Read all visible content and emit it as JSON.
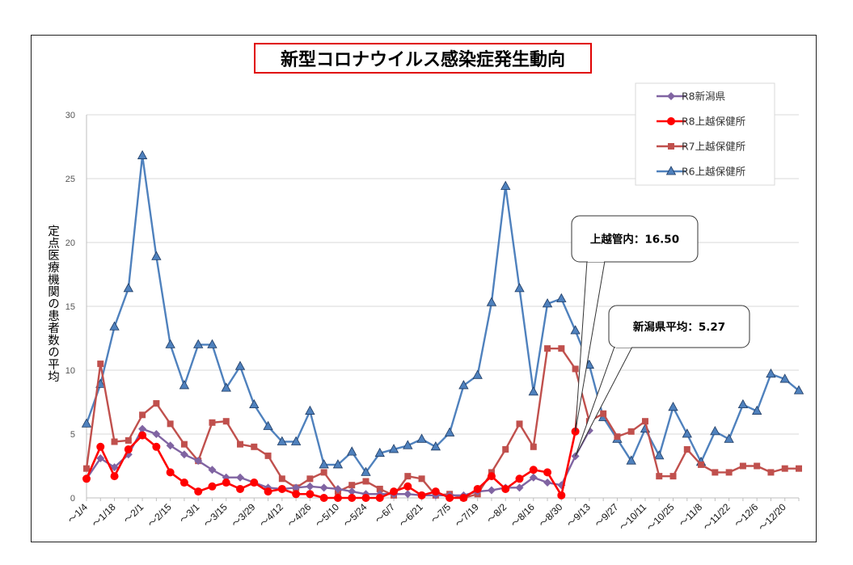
{
  "chart_data": {
    "type": "line",
    "title": "新型コロナウイルス感染症発生動向",
    "ylabel": "定点医療機関の患者数の平均",
    "xlabel": "",
    "ylim": [
      0,
      30
    ],
    "yticks": [
      0,
      5,
      10,
      15,
      20,
      25,
      30
    ],
    "grid": true,
    "legend_position": "top-right",
    "x_tick_labels": [
      "～1/4",
      "～1/18",
      "～2/1",
      "～2/15",
      "～3/1",
      "～3/15",
      "～3/29",
      "～4/12",
      "～4/26",
      "～5/10",
      "～5/24",
      "～6/7",
      "～6/21",
      "～7/5",
      "～7/19",
      "～8/2",
      "～8/16",
      "～8/30",
      "～9/13",
      "～9/27",
      "～10/11",
      "～10/25",
      "～11/8",
      "～11/22",
      "～12/6",
      "～12/20"
    ],
    "n_points": 52,
    "series": [
      {
        "name": "R8新潟県",
        "color": "#8064a2",
        "marker": "diamond",
        "values": [
          1.5,
          3.1,
          2.4,
          3.4,
          5.4,
          5.0,
          4.1,
          3.4,
          2.9,
          2.2,
          1.6,
          1.6,
          1.2,
          0.8,
          0.7,
          0.8,
          0.9,
          0.8,
          0.7,
          0.5,
          0.3,
          0.3,
          0.3,
          0.3,
          0.2,
          0.2,
          0.2,
          0.2,
          0.5,
          0.6,
          0.8,
          0.8,
          1.6,
          1.2,
          1.0,
          3.27,
          5.27
        ]
      },
      {
        "name": "R8上越保健所",
        "color": "#ff0000",
        "marker": "circle",
        "values": [
          1.5,
          4.0,
          1.7,
          3.8,
          4.9,
          4.0,
          2.0,
          1.2,
          0.5,
          0.9,
          1.2,
          0.7,
          1.2,
          0.5,
          0.7,
          0.3,
          0.3,
          0.0,
          0.0,
          0.0,
          0.0,
          0.0,
          0.5,
          0.9,
          0.2,
          0.5,
          0.0,
          0.0,
          0.7,
          1.7,
          0.7,
          1.5,
          2.2,
          2.0,
          0.2,
          5.2,
          16.5
        ]
      },
      {
        "name": "R7上越保健所",
        "color": "#c0504d",
        "marker": "square",
        "values": [
          2.3,
          10.5,
          4.4,
          4.5,
          6.5,
          7.4,
          5.8,
          4.2,
          2.9,
          5.9,
          6.0,
          4.2,
          4.0,
          3.3,
          1.5,
          0.8,
          1.5,
          2.0,
          0.5,
          1.0,
          1.3,
          0.7,
          0.2,
          1.7,
          1.5,
          0.2,
          0.3,
          0.0,
          0.3,
          2.0,
          3.8,
          5.8,
          4.0,
          11.7,
          11.7,
          10.1,
          6.0,
          6.6,
          4.8,
          5.2,
          6.0,
          1.7,
          1.7,
          3.8,
          2.6,
          2.0,
          2.0,
          2.5,
          2.5,
          2.0,
          2.3,
          2.3
        ]
      },
      {
        "name": "R6上越保健所",
        "color": "#4f81bd",
        "marker": "triangle",
        "values": [
          5.8,
          8.9,
          13.4,
          16.4,
          26.8,
          18.9,
          12.0,
          8.8,
          12.0,
          12.0,
          8.6,
          10.3,
          7.3,
          5.6,
          4.4,
          4.4,
          6.8,
          2.6,
          2.6,
          3.6,
          2.0,
          3.5,
          3.8,
          4.1,
          4.6,
          4.0,
          5.1,
          8.8,
          9.6,
          15.3,
          24.4,
          16.4,
          8.3,
          15.2,
          15.6,
          13.1,
          10.4,
          6.3,
          4.6,
          2.9,
          5.4,
          3.3,
          7.1,
          5.0,
          2.8,
          5.2,
          4.6,
          7.3,
          6.8,
          9.7,
          9.3,
          8.4
        ]
      }
    ],
    "annotations": [
      {
        "text": "上越管内：16.50",
        "series": "R8上越保健所",
        "value": 16.5
      },
      {
        "text": "新潟県平均：5.27",
        "series": "R8新潟県",
        "value": 5.27
      }
    ]
  }
}
